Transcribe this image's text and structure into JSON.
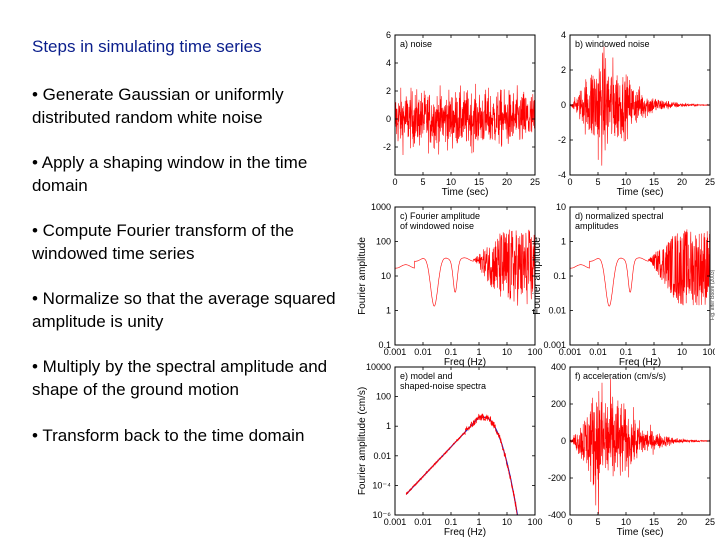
{
  "slide": {
    "title": "Steps in simulating time series",
    "bullets": [
      "• Generate Gaussian or uniformly distributed random white noise",
      "• Apply a shaping window in the time domain",
      "• Compute Fourier transform of the windowed time series",
      "• Normalize so that the average squared amplitude is unity",
      "• Multiply by the spectral amplitude and shape of the ground motion",
      "• Transform back to the time domain"
    ],
    "credit": "Fig. after Boore (2003)"
  },
  "colors": {
    "title": "#0a1e8c",
    "trace": "#ff0000",
    "model": "#1f1fbf"
  },
  "chart_data": [
    {
      "type": "line",
      "panel": "a",
      "title": "a) noise",
      "xlabel": "Time (sec)",
      "ylabel": "",
      "xlim": [
        0,
        25
      ],
      "ylim": [
        -4,
        6
      ],
      "xticks": [
        0,
        5,
        10,
        15,
        20,
        25
      ],
      "yticks": [
        -2,
        0,
        2,
        4,
        6
      ],
      "xticklabels": [
        "0",
        "5",
        "10",
        "15",
        "20",
        "25"
      ],
      "yticklabels": [
        "-2",
        "0",
        "2",
        "4",
        "6"
      ],
      "series": [
        {
          "kind": "noise",
          "envelope": "uniform",
          "amplitude": 2.2,
          "color": "#ff0000"
        }
      ]
    },
    {
      "type": "line",
      "panel": "b",
      "title": "b) windowed noise",
      "xlabel": "Time (sec)",
      "ylabel": "",
      "xlim": [
        0,
        25
      ],
      "ylim": [
        -4,
        4
      ],
      "xticks": [
        0,
        5,
        10,
        15,
        20,
        25
      ],
      "yticks": [
        -4,
        -2,
        0,
        2,
        4
      ],
      "xticklabels": [
        "0",
        "5",
        "10",
        "15",
        "20",
        "25"
      ],
      "yticklabels": [
        "-4",
        "-2",
        "0",
        "2",
        "4"
      ],
      "series": [
        {
          "kind": "noise",
          "envelope": "window",
          "amplitude": 3.4,
          "peak_time": 5,
          "color": "#ff0000"
        }
      ]
    },
    {
      "type": "line",
      "panel": "c",
      "title": "c) Fourier amplitude",
      "subtitle": "of windowed noise",
      "xlabel": "Freq (Hz)",
      "ylabel": "Fourier amplitude",
      "xscale": "log",
      "yscale": "log",
      "xlim": [
        0.001,
        100
      ],
      "ylim": [
        0.1,
        1000
      ],
      "xticks": [
        0.001,
        0.01,
        0.1,
        1,
        10,
        100
      ],
      "yticks": [
        0.1,
        1,
        10,
        100,
        1000
      ],
      "xticklabels": [
        "0.001",
        "0.01",
        "0.1",
        "1",
        "10",
        "100"
      ],
      "yticklabels": [
        "0.1",
        "1",
        "10",
        "100",
        "1000"
      ],
      "series": [
        {
          "kind": "spectrum",
          "level": 30,
          "color": "#ff0000"
        }
      ]
    },
    {
      "type": "line",
      "panel": "d",
      "title": "d) normalized spectral",
      "subtitle": "amplitudes",
      "xlabel": "Freq (Hz)",
      "ylabel": "Fourier amplitude",
      "xscale": "log",
      "yscale": "log",
      "xlim": [
        0.001,
        100
      ],
      "ylim": [
        0.001,
        10
      ],
      "xticks": [
        0.001,
        0.01,
        0.1,
        1,
        10,
        100
      ],
      "yticks": [
        0.001,
        0.01,
        0.1,
        1,
        10
      ],
      "xticklabels": [
        "0.001",
        "0.01",
        "0.1",
        "1",
        "10",
        "100"
      ],
      "yticklabels": [
        "0.001",
        "0.01",
        "0.1",
        "1",
        "10"
      ],
      "series": [
        {
          "kind": "spectrum",
          "level": 0.3,
          "color": "#ff0000"
        }
      ]
    },
    {
      "type": "line",
      "panel": "e",
      "title": "e) model and",
      "subtitle": "shaped-noise spectra",
      "xlabel": "Freq (Hz)",
      "ylabel": "Fourier amplitude (cm/s)",
      "xscale": "log",
      "yscale": "log",
      "xlim": [
        0.001,
        100
      ],
      "ylim": [
        1e-06,
        10000
      ],
      "xticks": [
        0.001,
        0.01,
        0.1,
        1,
        10,
        100
      ],
      "yticks": [
        1e-06,
        0.0001,
        0.01,
        1,
        100,
        10000
      ],
      "xticklabels": [
        "0.001",
        "0.01",
        "0.1",
        "1",
        "10",
        "100"
      ],
      "yticklabels": [
        "10⁻⁶",
        "10⁻⁴",
        "0.01",
        "1",
        "100",
        "10000"
      ],
      "series": [
        {
          "kind": "model",
          "corner_hz": 1,
          "color": "#1f1fbf"
        },
        {
          "kind": "shaped",
          "corner_hz": 1,
          "color": "#ff0000"
        }
      ]
    },
    {
      "type": "line",
      "panel": "f",
      "title": "f) acceleration (cm/s/s)",
      "xlabel": "Time (sec)",
      "ylabel": "",
      "xlim": [
        0,
        25
      ],
      "ylim": [
        -400,
        400
      ],
      "xticks": [
        0,
        5,
        10,
        15,
        20,
        25
      ],
      "yticks": [
        -400,
        -200,
        0,
        200,
        400
      ],
      "xticklabels": [
        "0",
        "5",
        "10",
        "15",
        "20",
        "25"
      ],
      "yticklabels": [
        "-400",
        "-200",
        "0",
        "200",
        "400"
      ],
      "series": [
        {
          "kind": "noise",
          "envelope": "window",
          "amplitude": 360,
          "peak_time": 5,
          "color": "#ff0000"
        }
      ]
    }
  ]
}
